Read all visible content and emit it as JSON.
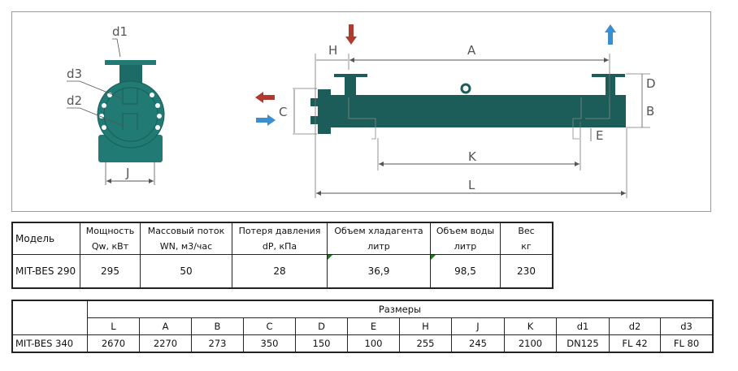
{
  "diagram": {
    "labels": {
      "d1": "d1",
      "d2": "d2",
      "d3": "d3",
      "J": "J",
      "H": "H",
      "A": "A",
      "C": "C",
      "D": "D",
      "B": "B",
      "E": "E",
      "K": "K",
      "L": "L"
    },
    "colors": {
      "body": "#1d5d59",
      "accent": "#227a74",
      "hot_arrow": "#b03a2e",
      "cold_arrow": "#3a8fd0"
    }
  },
  "table1": {
    "headers": [
      {
        "line1": "Модель",
        "line2": ""
      },
      {
        "line1": "Мощность",
        "line2": "Qw, кВт"
      },
      {
        "line1": "Массовый поток",
        "line2": "WN, м3/час"
      },
      {
        "line1": "Потеря давления",
        "line2": "dP, кПа"
      },
      {
        "line1": "Объем хладагента",
        "line2": "литр"
      },
      {
        "line1": "Объем воды",
        "line2": "литр"
      },
      {
        "line1": "Вес",
        "line2": "кг"
      }
    ],
    "row": [
      "MIT-BES 290",
      "295",
      "50",
      "28",
      "36,9",
      "98,5",
      "230"
    ]
  },
  "table2": {
    "group_header": "Размеры",
    "columns": [
      "L",
      "A",
      "B",
      "C",
      "D",
      "E",
      "H",
      "J",
      "K",
      "d1",
      "d2",
      "d3"
    ],
    "model": "MIT-BES 340",
    "values": [
      "2670",
      "2270",
      "273",
      "350",
      "150",
      "100",
      "255",
      "245",
      "2100",
      "DN125",
      "FL 42",
      "FL 80"
    ]
  }
}
